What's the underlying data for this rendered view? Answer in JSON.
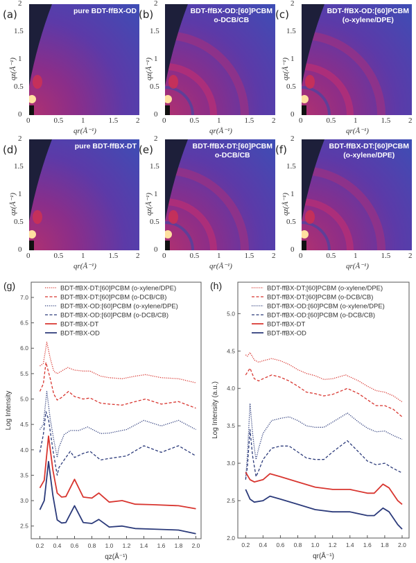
{
  "maps": [
    {
      "letter": "(a)",
      "title_lines": [
        "pure BDT-ffBX-OD"
      ],
      "rings": false
    },
    {
      "letter": "(b)",
      "title_lines": [
        "BDT-ffBX-OD:[60]PCBM",
        "o-DCB/CB"
      ],
      "rings": true
    },
    {
      "letter": "(c)",
      "title_lines": [
        "BDT-ffBX-OD:[60]PCBM",
        "(o-xylene/DPE)"
      ],
      "rings": true
    },
    {
      "letter": "(d)",
      "title_lines": [
        "pure BDT-ffBX-DT"
      ],
      "rings": false
    },
    {
      "letter": "(e)",
      "title_lines": [
        "BDT-ffBX-DT:[60]PCBM",
        "o-DCB/CB"
      ],
      "rings": true
    },
    {
      "letter": "(f)",
      "title_lines": [
        "BDT-ffBX-DT:[60]PCBM",
        "(o-xylene/DPE)"
      ],
      "rings": true
    }
  ],
  "map_axes": {
    "ticks": [
      "0",
      "0.5",
      "1",
      "1.5",
      "2"
    ],
    "xlabel": "qr(Å⁻¹)",
    "ylabel": "qz(Å⁻¹)"
  },
  "colors": {
    "red": "#d8352f",
    "blue": "#2b3a7a",
    "dark": "#1d1f3a"
  },
  "chart_data": [
    {
      "letter": "(g)",
      "type": "line",
      "xlabel": "qz(Å⁻¹)",
      "ylabel": "Log Intensity",
      "xlim": [
        0.1,
        2.06
      ],
      "ylim": [
        2.25,
        7.3
      ],
      "xticks": [
        0.2,
        0.4,
        0.6,
        0.8,
        1.0,
        1.2,
        1.4,
        1.6,
        1.8,
        2.0
      ],
      "yticks": [
        2.5,
        3.0,
        3.5,
        4.0,
        4.5,
        5.0,
        5.5,
        6.0,
        6.5,
        7.0
      ],
      "legend": "top-left",
      "series": [
        {
          "name": "BDT-ffBX-DT:[60]PCBM (o-xylene/DPE)",
          "color": "#d8352f",
          "style": "dotted",
          "points": [
            [
              0.2,
              5.65
            ],
            [
              0.24,
              5.7
            ],
            [
              0.28,
              6.12
            ],
            [
              0.32,
              5.8
            ],
            [
              0.36,
              5.55
            ],
            [
              0.4,
              5.5
            ],
            [
              0.45,
              5.55
            ],
            [
              0.52,
              5.62
            ],
            [
              0.6,
              5.57
            ],
            [
              0.7,
              5.55
            ],
            [
              0.78,
              5.55
            ],
            [
              0.9,
              5.45
            ],
            [
              1.0,
              5.42
            ],
            [
              1.15,
              5.4
            ],
            [
              1.3,
              5.45
            ],
            [
              1.42,
              5.48
            ],
            [
              1.6,
              5.42
            ],
            [
              1.8,
              5.4
            ],
            [
              2.0,
              5.32
            ]
          ]
        },
        {
          "name": "BDT-ffBX-DT:[60]PCBM (o-DCB/CB)",
          "color": "#d8352f",
          "style": "dashed",
          "points": [
            [
              0.2,
              5.15
            ],
            [
              0.24,
              5.3
            ],
            [
              0.27,
              5.72
            ],
            [
              0.32,
              5.4
            ],
            [
              0.36,
              5.1
            ],
            [
              0.4,
              4.98
            ],
            [
              0.45,
              5.03
            ],
            [
              0.53,
              5.15
            ],
            [
              0.6,
              5.05
            ],
            [
              0.7,
              5.0
            ],
            [
              0.78,
              5.02
            ],
            [
              0.9,
              4.92
            ],
            [
              1.0,
              4.9
            ],
            [
              1.15,
              4.88
            ],
            [
              1.3,
              4.95
            ],
            [
              1.42,
              5.0
            ],
            [
              1.6,
              4.9
            ],
            [
              1.8,
              4.95
            ],
            [
              2.0,
              4.82
            ]
          ]
        },
        {
          "name": "BDT-ffBX-OD:[60]PCBM (o-xylene/DPE)",
          "color": "#2b3a7a",
          "style": "dotted",
          "points": [
            [
              0.2,
              4.4
            ],
            [
              0.24,
              4.5
            ],
            [
              0.28,
              5.15
            ],
            [
              0.32,
              4.6
            ],
            [
              0.36,
              4.2
            ],
            [
              0.4,
              3.85
            ],
            [
              0.42,
              4.05
            ],
            [
              0.48,
              4.3
            ],
            [
              0.55,
              4.38
            ],
            [
              0.65,
              4.38
            ],
            [
              0.75,
              4.45
            ],
            [
              0.9,
              4.32
            ],
            [
              1.0,
              4.33
            ],
            [
              1.2,
              4.4
            ],
            [
              1.4,
              4.58
            ],
            [
              1.6,
              4.47
            ],
            [
              1.8,
              4.58
            ],
            [
              2.0,
              4.4
            ]
          ]
        },
        {
          "name": "BDT-ffBX-OD:[60]PCBM (o-DCB/CB)",
          "color": "#2b3a7a",
          "style": "dashed",
          "points": [
            [
              0.2,
              3.95
            ],
            [
              0.24,
              4.3
            ],
            [
              0.27,
              4.75
            ],
            [
              0.3,
              4.6
            ],
            [
              0.35,
              4.0
            ],
            [
              0.4,
              3.5
            ],
            [
              0.42,
              3.65
            ],
            [
              0.48,
              3.8
            ],
            [
              0.55,
              3.97
            ],
            [
              0.6,
              3.85
            ],
            [
              0.7,
              3.93
            ],
            [
              0.78,
              3.97
            ],
            [
              0.9,
              3.8
            ],
            [
              1.0,
              3.83
            ],
            [
              1.2,
              3.88
            ],
            [
              1.4,
              4.08
            ],
            [
              1.6,
              3.95
            ],
            [
              1.8,
              4.08
            ],
            [
              2.0,
              3.88
            ]
          ]
        },
        {
          "name": "BDT-ffBX-DT",
          "color": "#d8352f",
          "style": "solid",
          "points": [
            [
              0.2,
              3.25
            ],
            [
              0.25,
              3.4
            ],
            [
              0.3,
              4.27
            ],
            [
              0.35,
              3.6
            ],
            [
              0.4,
              3.15
            ],
            [
              0.45,
              3.07
            ],
            [
              0.5,
              3.08
            ],
            [
              0.6,
              3.42
            ],
            [
              0.7,
              3.07
            ],
            [
              0.8,
              3.05
            ],
            [
              0.88,
              3.15
            ],
            [
              1.0,
              2.97
            ],
            [
              1.15,
              3.0
            ],
            [
              1.3,
              2.93
            ],
            [
              1.5,
              2.92
            ],
            [
              1.8,
              2.9
            ],
            [
              2.0,
              2.84
            ]
          ]
        },
        {
          "name": "BDT-ffBX-OD",
          "color": "#2b3a7a",
          "style": "solid",
          "points": [
            [
              0.2,
              2.82
            ],
            [
              0.25,
              3.0
            ],
            [
              0.3,
              3.77
            ],
            [
              0.35,
              3.1
            ],
            [
              0.4,
              2.62
            ],
            [
              0.45,
              2.56
            ],
            [
              0.5,
              2.57
            ],
            [
              0.6,
              2.9
            ],
            [
              0.7,
              2.57
            ],
            [
              0.8,
              2.55
            ],
            [
              0.88,
              2.63
            ],
            [
              1.0,
              2.48
            ],
            [
              1.15,
              2.5
            ],
            [
              1.3,
              2.45
            ],
            [
              1.5,
              2.44
            ],
            [
              1.8,
              2.42
            ],
            [
              2.0,
              2.35
            ]
          ]
        }
      ]
    },
    {
      "letter": "(h)",
      "type": "line",
      "xlabel": "qr(Å⁻¹)",
      "ylabel": "Log Intensity (a.u.)",
      "xlim": [
        0.11,
        2.08
      ],
      "ylim": [
        2.0,
        5.42
      ],
      "xticks": [
        0.2,
        0.4,
        0.6,
        0.8,
        1.0,
        1.2,
        1.4,
        1.6,
        1.8,
        2.0
      ],
      "yticks": [
        2.0,
        2.5,
        3.0,
        3.5,
        4.0,
        4.5,
        5.0
      ],
      "legend": "top-left",
      "series": [
        {
          "name": "BDT-ffBX-DT:[60]PCBM (o-xylene/DPE)",
          "color": "#d8352f",
          "style": "dotted",
          "points": [
            [
              0.2,
              4.45
            ],
            [
              0.22,
              4.43
            ],
            [
              0.25,
              4.48
            ],
            [
              0.3,
              4.38
            ],
            [
              0.35,
              4.35
            ],
            [
              0.4,
              4.37
            ],
            [
              0.5,
              4.4
            ],
            [
              0.6,
              4.37
            ],
            [
              0.7,
              4.32
            ],
            [
              0.8,
              4.25
            ],
            [
              0.9,
              4.2
            ],
            [
              1.0,
              4.17
            ],
            [
              1.1,
              4.12
            ],
            [
              1.2,
              4.13
            ],
            [
              1.35,
              4.18
            ],
            [
              1.5,
              4.1
            ],
            [
              1.6,
              4.03
            ],
            [
              1.7,
              3.97
            ],
            [
              1.8,
              3.95
            ],
            [
              1.9,
              3.9
            ],
            [
              2.0,
              3.82
            ]
          ]
        },
        {
          "name": "BDT-ffBX-DT:[60]PCBM (o-DCB/CB)",
          "color": "#d8352f",
          "style": "dashed",
          "points": [
            [
              0.2,
              4.18
            ],
            [
              0.25,
              4.27
            ],
            [
              0.3,
              4.13
            ],
            [
              0.35,
              4.1
            ],
            [
              0.4,
              4.13
            ],
            [
              0.5,
              4.18
            ],
            [
              0.6,
              4.15
            ],
            [
              0.7,
              4.1
            ],
            [
              0.8,
              4.03
            ],
            [
              0.9,
              3.95
            ],
            [
              1.0,
              3.93
            ],
            [
              1.1,
              3.9
            ],
            [
              1.2,
              3.92
            ],
            [
              1.37,
              4.0
            ],
            [
              1.5,
              3.93
            ],
            [
              1.6,
              3.85
            ],
            [
              1.7,
              3.77
            ],
            [
              1.8,
              3.77
            ],
            [
              1.9,
              3.72
            ],
            [
              2.0,
              3.62
            ]
          ]
        },
        {
          "name": "BDT-ffBX-OD:[60]PCBM (o-xylene/DPE)",
          "color": "#2b3a7a",
          "style": "dotted",
          "points": [
            [
              0.2,
              2.8
            ],
            [
              0.22,
              3.1
            ],
            [
              0.25,
              3.8
            ],
            [
              0.28,
              3.4
            ],
            [
              0.3,
              3.2
            ],
            [
              0.32,
              3.05
            ],
            [
              0.35,
              3.2
            ],
            [
              0.4,
              3.4
            ],
            [
              0.5,
              3.57
            ],
            [
              0.6,
              3.6
            ],
            [
              0.7,
              3.62
            ],
            [
              0.8,
              3.57
            ],
            [
              0.9,
              3.5
            ],
            [
              1.0,
              3.48
            ],
            [
              1.1,
              3.48
            ],
            [
              1.2,
              3.55
            ],
            [
              1.37,
              3.67
            ],
            [
              1.5,
              3.55
            ],
            [
              1.6,
              3.47
            ],
            [
              1.7,
              3.42
            ],
            [
              1.8,
              3.43
            ],
            [
              1.9,
              3.37
            ],
            [
              2.0,
              3.32
            ]
          ]
        },
        {
          "name": "BDT-ffBX-OD:[60]PCBM (o-DCB/CB)",
          "color": "#2b3a7a",
          "style": "dashed",
          "points": [
            [
              0.2,
              2.78
            ],
            [
              0.22,
              2.95
            ],
            [
              0.25,
              3.45
            ],
            [
              0.28,
              3.1
            ],
            [
              0.32,
              2.82
            ],
            [
              0.35,
              2.9
            ],
            [
              0.4,
              3.05
            ],
            [
              0.5,
              3.2
            ],
            [
              0.6,
              3.23
            ],
            [
              0.7,
              3.23
            ],
            [
              0.8,
              3.15
            ],
            [
              0.9,
              3.07
            ],
            [
              1.0,
              3.05
            ],
            [
              1.1,
              3.05
            ],
            [
              1.2,
              3.15
            ],
            [
              1.37,
              3.3
            ],
            [
              1.5,
              3.15
            ],
            [
              1.6,
              3.03
            ],
            [
              1.7,
              2.98
            ],
            [
              1.8,
              3.0
            ],
            [
              1.9,
              2.93
            ],
            [
              2.0,
              2.87
            ]
          ]
        },
        {
          "name": "BDT-ffBX-DT",
          "color": "#d8352f",
          "style": "solid",
          "points": [
            [
              0.2,
              2.88
            ],
            [
              0.25,
              2.78
            ],
            [
              0.3,
              2.75
            ],
            [
              0.4,
              2.78
            ],
            [
              0.48,
              2.86
            ],
            [
              0.6,
              2.82
            ],
            [
              0.8,
              2.75
            ],
            [
              1.0,
              2.68
            ],
            [
              1.2,
              2.65
            ],
            [
              1.4,
              2.65
            ],
            [
              1.6,
              2.6
            ],
            [
              1.68,
              2.6
            ],
            [
              1.78,
              2.72
            ],
            [
              1.85,
              2.67
            ],
            [
              1.95,
              2.5
            ],
            [
              2.0,
              2.45
            ]
          ]
        },
        {
          "name": "BDT-ffBX-OD",
          "color": "#2b3a7a",
          "style": "solid",
          "points": [
            [
              0.2,
              2.65
            ],
            [
              0.25,
              2.52
            ],
            [
              0.3,
              2.48
            ],
            [
              0.4,
              2.5
            ],
            [
              0.48,
              2.56
            ],
            [
              0.6,
              2.52
            ],
            [
              0.8,
              2.45
            ],
            [
              1.0,
              2.38
            ],
            [
              1.2,
              2.35
            ],
            [
              1.4,
              2.35
            ],
            [
              1.6,
              2.3
            ],
            [
              1.68,
              2.3
            ],
            [
              1.78,
              2.4
            ],
            [
              1.85,
              2.35
            ],
            [
              1.95,
              2.18
            ],
            [
              2.0,
              2.12
            ]
          ]
        }
      ]
    }
  ]
}
